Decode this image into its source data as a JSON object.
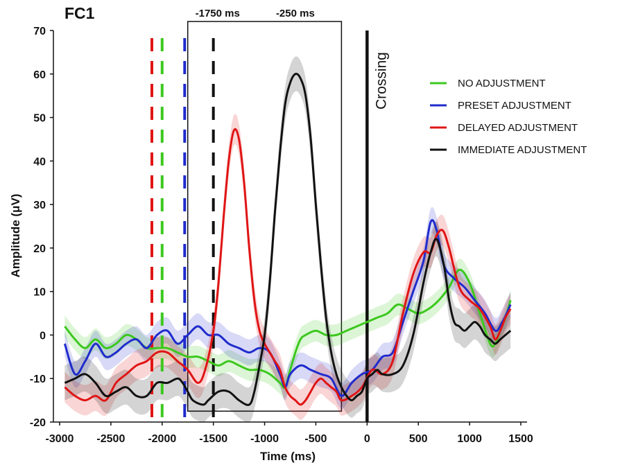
{
  "chart_data": {
    "type": "line",
    "title": "FC1",
    "xlabel": "Time (ms)",
    "ylabel": "Amplitude (μV)",
    "xlim": [
      -3000,
      1500
    ],
    "ylim": [
      -20,
      70
    ],
    "xticks": [
      -3000,
      -2500,
      -2000,
      -1500,
      -1000,
      -500,
      0,
      500,
      1000,
      1500
    ],
    "yticks": [
      -20,
      -10,
      0,
      10,
      20,
      30,
      40,
      50,
      60,
      70
    ],
    "grid": false,
    "legend_position": "right",
    "series": [
      {
        "name": "NO ADJUSTMENT",
        "color": "#3cc81e",
        "band": 2.5,
        "points": [
          [
            -2950,
            2
          ],
          [
            -2850,
            -1
          ],
          [
            -2750,
            -3
          ],
          [
            -2650,
            -1
          ],
          [
            -2550,
            -3
          ],
          [
            -2450,
            -2
          ],
          [
            -2350,
            0
          ],
          [
            -2250,
            -1
          ],
          [
            -2150,
            -3
          ],
          [
            -2050,
            -3
          ],
          [
            -1950,
            -3
          ],
          [
            -1850,
            -4
          ],
          [
            -1750,
            -5
          ],
          [
            -1650,
            -5
          ],
          [
            -1550,
            -6
          ],
          [
            -1450,
            -7
          ],
          [
            -1350,
            -6
          ],
          [
            -1250,
            -7
          ],
          [
            -1150,
            -8
          ],
          [
            -1050,
            -8
          ],
          [
            -950,
            -9
          ],
          [
            -850,
            -11
          ],
          [
            -800,
            -12
          ],
          [
            -750,
            -8
          ],
          [
            -700,
            -4
          ],
          [
            -650,
            -1
          ],
          [
            -600,
            0
          ],
          [
            -500,
            1
          ],
          [
            -400,
            0
          ],
          [
            -300,
            0
          ],
          [
            -200,
            1
          ],
          [
            -100,
            2
          ],
          [
            0,
            3
          ],
          [
            100,
            4
          ],
          [
            200,
            5
          ],
          [
            300,
            7
          ],
          [
            400,
            6
          ],
          [
            500,
            5
          ],
          [
            600,
            6
          ],
          [
            700,
            8
          ],
          [
            800,
            11
          ],
          [
            900,
            15
          ],
          [
            1000,
            12
          ],
          [
            1100,
            5
          ],
          [
            1200,
            -2
          ],
          [
            1250,
            -2
          ],
          [
            1300,
            1
          ],
          [
            1350,
            4
          ],
          [
            1400,
            8
          ]
        ]
      },
      {
        "name": "PRESET ADJUSTMENT",
        "color": "#1f2bcc",
        "band": 3,
        "points": [
          [
            -2950,
            -2
          ],
          [
            -2850,
            -9
          ],
          [
            -2750,
            -6
          ],
          [
            -2650,
            -2
          ],
          [
            -2550,
            -5
          ],
          [
            -2450,
            -4
          ],
          [
            -2350,
            -2
          ],
          [
            -2250,
            -1
          ],
          [
            -2150,
            -3
          ],
          [
            -2050,
            0
          ],
          [
            -1950,
            1
          ],
          [
            -1850,
            -2
          ],
          [
            -1750,
            0
          ],
          [
            -1650,
            2
          ],
          [
            -1550,
            0
          ],
          [
            -1450,
            0
          ],
          [
            -1350,
            -2
          ],
          [
            -1250,
            -3
          ],
          [
            -1150,
            -4
          ],
          [
            -1050,
            -3
          ],
          [
            -950,
            -4
          ],
          [
            -850,
            -9
          ],
          [
            -800,
            -12
          ],
          [
            -750,
            -9
          ],
          [
            -650,
            -7
          ],
          [
            -550,
            -8
          ],
          [
            -450,
            -9
          ],
          [
            -350,
            -10
          ],
          [
            -250,
            -14
          ],
          [
            -150,
            -11
          ],
          [
            -50,
            -9
          ],
          [
            50,
            -8
          ],
          [
            150,
            -5
          ],
          [
            250,
            -4
          ],
          [
            350,
            3
          ],
          [
            450,
            10
          ],
          [
            550,
            17
          ],
          [
            620,
            26
          ],
          [
            680,
            24
          ],
          [
            750,
            16
          ],
          [
            850,
            13
          ],
          [
            950,
            11
          ],
          [
            1050,
            8
          ],
          [
            1150,
            5
          ],
          [
            1250,
            1
          ],
          [
            1320,
            3
          ],
          [
            1400,
            7
          ]
        ]
      },
      {
        "name": "DELAYED ADJUSTMENT",
        "color": "#e01515",
        "band": 3.5,
        "points": [
          [
            -2950,
            -12
          ],
          [
            -2850,
            -14
          ],
          [
            -2750,
            -15
          ],
          [
            -2650,
            -14
          ],
          [
            -2550,
            -15
          ],
          [
            -2450,
            -11
          ],
          [
            -2350,
            -9
          ],
          [
            -2250,
            -7
          ],
          [
            -2150,
            -6
          ],
          [
            -2050,
            -4
          ],
          [
            -1950,
            -4
          ],
          [
            -1850,
            -6
          ],
          [
            -1750,
            -8
          ],
          [
            -1650,
            -11
          ],
          [
            -1580,
            -8
          ],
          [
            -1500,
            1
          ],
          [
            -1450,
            12
          ],
          [
            -1400,
            27
          ],
          [
            -1350,
            40
          ],
          [
            -1300,
            47
          ],
          [
            -1250,
            45
          ],
          [
            -1200,
            35
          ],
          [
            -1150,
            20
          ],
          [
            -1100,
            8
          ],
          [
            -1050,
            1
          ],
          [
            -1000,
            -2
          ],
          [
            -950,
            -4
          ],
          [
            -900,
            -6
          ],
          [
            -850,
            -8
          ],
          [
            -800,
            -12
          ],
          [
            -750,
            -14
          ],
          [
            -700,
            -15
          ],
          [
            -650,
            -16
          ],
          [
            -600,
            -15
          ],
          [
            -550,
            -13
          ],
          [
            -500,
            -11
          ],
          [
            -450,
            -10
          ],
          [
            -400,
            -11
          ],
          [
            -350,
            -12
          ],
          [
            -300,
            -13
          ],
          [
            -250,
            -15
          ],
          [
            -150,
            -14
          ],
          [
            -50,
            -12
          ],
          [
            50,
            -8
          ],
          [
            150,
            -9
          ],
          [
            250,
            -6
          ],
          [
            350,
            5
          ],
          [
            450,
            14
          ],
          [
            550,
            19
          ],
          [
            620,
            19
          ],
          [
            680,
            23
          ],
          [
            740,
            24
          ],
          [
            800,
            20
          ],
          [
            900,
            11
          ],
          [
            1000,
            8
          ],
          [
            1100,
            6
          ],
          [
            1200,
            2
          ],
          [
            1250,
            -1
          ],
          [
            1300,
            1
          ],
          [
            1350,
            4
          ],
          [
            1400,
            6
          ]
        ]
      },
      {
        "name": "IMMEDIATE ADJUSTMENT",
        "color": "#111111",
        "band": 4,
        "points": [
          [
            -2950,
            -11
          ],
          [
            -2850,
            -10
          ],
          [
            -2750,
            -9
          ],
          [
            -2650,
            -11
          ],
          [
            -2550,
            -14
          ],
          [
            -2450,
            -13
          ],
          [
            -2350,
            -12
          ],
          [
            -2250,
            -14
          ],
          [
            -2150,
            -14
          ],
          [
            -2050,
            -11
          ],
          [
            -1950,
            -11
          ],
          [
            -1850,
            -10
          ],
          [
            -1800,
            -11
          ],
          [
            -1750,
            -13
          ],
          [
            -1700,
            -15
          ],
          [
            -1600,
            -16
          ],
          [
            -1550,
            -15
          ],
          [
            -1450,
            -13
          ],
          [
            -1350,
            -13
          ],
          [
            -1250,
            -15
          ],
          [
            -1150,
            -16
          ],
          [
            -1100,
            -13
          ],
          [
            -1050,
            -7
          ],
          [
            -1000,
            0
          ],
          [
            -950,
            12
          ],
          [
            -900,
            28
          ],
          [
            -850,
            42
          ],
          [
            -800,
            53
          ],
          [
            -750,
            58
          ],
          [
            -700,
            60
          ],
          [
            -650,
            59
          ],
          [
            -600,
            55
          ],
          [
            -550,
            45
          ],
          [
            -500,
            30
          ],
          [
            -450,
            16
          ],
          [
            -400,
            4
          ],
          [
            -350,
            -4
          ],
          [
            -300,
            -9
          ],
          [
            -250,
            -12
          ],
          [
            -200,
            -14
          ],
          [
            -150,
            -15
          ],
          [
            -100,
            -14
          ],
          [
            -50,
            -13
          ],
          [
            0,
            -10
          ],
          [
            50,
            -9
          ],
          [
            100,
            -8
          ],
          [
            150,
            -9
          ],
          [
            250,
            -9
          ],
          [
            350,
            -7
          ],
          [
            450,
            0
          ],
          [
            550,
            12
          ],
          [
            620,
            19
          ],
          [
            680,
            22
          ],
          [
            750,
            16
          ],
          [
            800,
            8
          ],
          [
            850,
            3
          ],
          [
            900,
            2
          ],
          [
            950,
            1
          ],
          [
            1000,
            2
          ],
          [
            1050,
            3
          ],
          [
            1100,
            2
          ],
          [
            1150,
            0
          ],
          [
            1200,
            -1
          ],
          [
            1250,
            -2
          ],
          [
            1300,
            -1
          ],
          [
            1350,
            0
          ],
          [
            1400,
            1
          ]
        ]
      }
    ],
    "markers": [
      {
        "x": -2100,
        "color": "#e01515",
        "style": "dashed"
      },
      {
        "x": -2000,
        "color": "#3cc81e",
        "style": "dashed"
      },
      {
        "x": -1780,
        "color": "#1f2bcc",
        "style": "dashed"
      },
      {
        "x": -1500,
        "color": "#111111",
        "style": "dashed"
      },
      {
        "x": 0,
        "color": "#111111",
        "style": "solid"
      }
    ],
    "window": {
      "x_start": -1750,
      "x_end": -250,
      "y_bottom": -17.5
    },
    "annotations": {
      "window_left": "-1750 ms",
      "window_right": "-250 ms",
      "crossing": "Crossing"
    }
  }
}
